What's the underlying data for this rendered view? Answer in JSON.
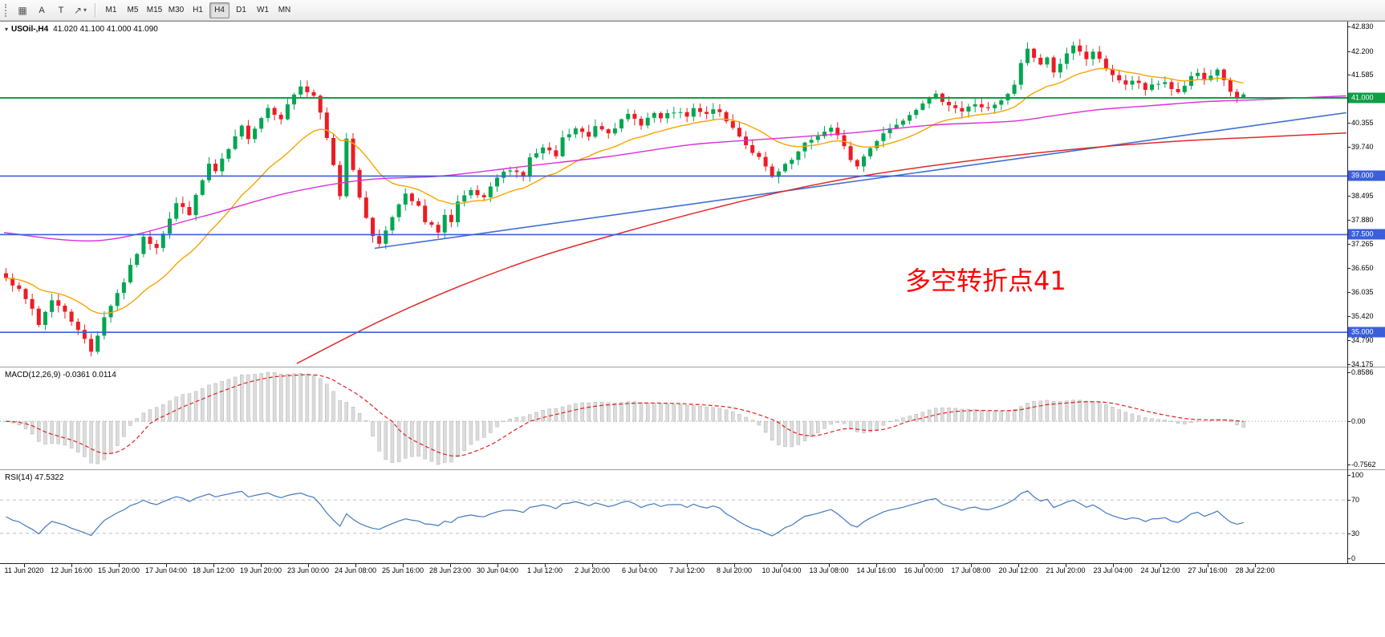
{
  "toolbar": {
    "grid_glyph": "▦",
    "text_tool_label": "A",
    "label_tool_label": "T",
    "arrow_glyph": "↗",
    "caret_glyph": "▾",
    "timeframes": [
      "M1",
      "M5",
      "M15",
      "M30",
      "H1",
      "H4",
      "D1",
      "W1",
      "MN"
    ],
    "active_timeframe": "H4"
  },
  "chart": {
    "collapse_glyph": "▾",
    "symbol_period": "USOil-,H4",
    "ohlc": "41.020 41.100 41.000 41.090",
    "annotation": {
      "text": "多空转折点41",
      "color": "#ff0000"
    },
    "price_axis_labels": [
      "42.830",
      "42.200",
      "41.585",
      "40.355",
      "39.740",
      "38.495",
      "37.880",
      "37.265",
      "36.650",
      "36.035",
      "35.420",
      "34.790",
      "34.175"
    ],
    "price_tags": [
      {
        "value": "41.000",
        "price": 41.0,
        "bg": "#0f9d46"
      },
      {
        "value": "39.000",
        "price": 39.0,
        "bg": "#3a5fd9"
      },
      {
        "value": "37.500",
        "price": 37.5,
        "bg": "#3a5fd9"
      },
      {
        "value": "35.000",
        "price": 35.0,
        "bg": "#3a5fd9"
      }
    ]
  },
  "macd": {
    "label": "MACD(12,26,9) -0.0361 0.0114",
    "axis_labels": [
      "0.8586",
      "0.00",
      "-0.7562"
    ],
    "histogram_color": "#dcdcdc",
    "histogram_border": "#a6a6a6",
    "signal_color": "#e02020"
  },
  "rsi": {
    "label": "RSI(14) 47.5322",
    "axis_labels": [
      "100",
      "70",
      "30",
      "0"
    ],
    "line_color": "#4178be",
    "level_color": "#bdbdbd",
    "levels": [
      70,
      30
    ]
  },
  "time_axis": [
    "11 Jun 2020",
    "12 Jun 16:00",
    "15 Jun 20:00",
    "17 Jun 04:00",
    "18 Jun 12:00",
    "19 Jun 20:00",
    "23 Jun 00:00",
    "24 Jun 08:00",
    "25 Jun 16:00",
    "28 Jun 23:00",
    "30 Jun 04:00",
    "1 Jul 12:00",
    "2 Jul 20:00",
    "6 Jul 04:00",
    "7 Jul 12:00",
    "8 Jul 20:00",
    "10 Jul 04:00",
    "13 Jul 08:00",
    "14 Jul 16:00",
    "16 Jul 00:00",
    "17 Jul 08:00",
    "20 Jul 12:00",
    "21 Jul 20:00",
    "23 Jul 04:00",
    "24 Jul 12:00",
    "27 Jul 16:00",
    "28 Jul 22:00"
  ],
  "chart_data": {
    "type": "candlestick",
    "symbol": "USOil-",
    "timeframe": "H4",
    "n_candles": 190,
    "ylim": [
      34.175,
      42.83
    ],
    "bull_color": "#00a651",
    "bear_color": "#ed1c24",
    "price_path": [
      [
        0,
        36.45
      ],
      [
        2,
        36.05
      ],
      [
        4,
        35.6
      ],
      [
        5,
        35.2
      ],
      [
        7,
        35.85
      ],
      [
        9,
        35.5
      ],
      [
        11,
        35.1
      ],
      [
        13,
        34.5
      ],
      [
        15,
        35.4
      ],
      [
        17,
        36.0
      ],
      [
        18,
        36.3
      ],
      [
        21,
        37.4
      ],
      [
        23,
        37.2
      ],
      [
        26,
        38.3
      ],
      [
        28,
        38.05
      ],
      [
        31,
        39.3
      ],
      [
        32,
        39.1
      ],
      [
        36,
        40.25
      ],
      [
        37,
        40.0
      ],
      [
        40,
        40.75
      ],
      [
        42,
        40.5
      ],
      [
        44,
        41.1
      ],
      [
        45,
        41.3
      ],
      [
        47,
        41.0
      ],
      [
        48,
        40.6
      ],
      [
        50,
        39.3
      ],
      [
        51,
        38.5
      ],
      [
        52,
        40.0
      ],
      [
        53,
        39.2
      ],
      [
        54,
        38.4
      ],
      [
        56,
        37.5
      ],
      [
        57,
        37.25
      ],
      [
        59,
        38.0
      ],
      [
        61,
        38.5
      ],
      [
        63,
        38.2
      ],
      [
        64,
        37.8
      ],
      [
        66,
        37.6
      ],
      [
        67,
        38.0
      ],
      [
        68,
        37.8
      ],
      [
        69,
        38.3
      ],
      [
        71,
        38.6
      ],
      [
        73,
        38.4
      ],
      [
        75,
        38.95
      ],
      [
        77,
        39.2
      ],
      [
        79,
        39.0
      ],
      [
        80,
        39.45
      ],
      [
        82,
        39.7
      ],
      [
        84,
        39.5
      ],
      [
        85,
        39.95
      ],
      [
        87,
        40.2
      ],
      [
        89,
        40.0
      ],
      [
        90,
        40.3
      ],
      [
        92,
        40.15
      ],
      [
        94,
        40.4
      ],
      [
        95,
        40.55
      ],
      [
        97,
        40.35
      ],
      [
        99,
        40.6
      ],
      [
        100,
        40.45
      ],
      [
        102,
        40.65
      ],
      [
        104,
        40.5
      ],
      [
        105,
        40.7
      ],
      [
        107,
        40.55
      ],
      [
        108,
        40.75
      ],
      [
        110,
        40.4
      ],
      [
        112,
        40.05
      ],
      [
        113,
        39.8
      ],
      [
        115,
        39.45
      ],
      [
        117,
        38.95
      ],
      [
        120,
        39.4
      ],
      [
        122,
        39.8
      ],
      [
        124,
        40.05
      ],
      [
        126,
        40.2
      ],
      [
        128,
        39.8
      ],
      [
        129,
        39.4
      ],
      [
        130,
        39.25
      ],
      [
        132,
        39.75
      ],
      [
        134,
        40.1
      ],
      [
        136,
        40.35
      ],
      [
        138,
        40.6
      ],
      [
        140,
        40.9
      ],
      [
        142,
        41.05
      ],
      [
        144,
        40.85
      ],
      [
        146,
        40.65
      ],
      [
        148,
        40.85
      ],
      [
        150,
        40.7
      ],
      [
        152,
        40.9
      ],
      [
        154,
        41.3
      ],
      [
        155,
        41.9
      ],
      [
        156,
        42.25
      ],
      [
        157,
        42.05
      ],
      [
        158,
        41.85
      ],
      [
        159,
        42.0
      ],
      [
        160,
        41.7
      ],
      [
        162,
        42.1
      ],
      [
        163,
        42.3
      ],
      [
        164,
        42.15
      ],
      [
        165,
        42.0
      ],
      [
        166,
        42.2
      ],
      [
        167,
        41.95
      ],
      [
        169,
        41.6
      ],
      [
        171,
        41.3
      ],
      [
        172,
        41.45
      ],
      [
        174,
        41.2
      ],
      [
        175,
        41.35
      ],
      [
        177,
        41.4
      ],
      [
        179,
        41.1
      ],
      [
        181,
        41.5
      ],
      [
        182,
        41.6
      ],
      [
        183,
        41.45
      ],
      [
        185,
        41.7
      ],
      [
        186,
        41.4
      ],
      [
        187,
        41.15
      ],
      [
        188,
        41.0
      ],
      [
        189,
        41.09
      ]
    ],
    "hlines": [
      {
        "price": 41.0,
        "color": "#0f9d46",
        "width": 2
      },
      {
        "price": 39.0,
        "color": "#3a5fd9",
        "width": 1.6
      },
      {
        "price": 37.5,
        "color": "#3a5fd9",
        "width": 1.6
      },
      {
        "price": 35.0,
        "color": "#3a5fd9",
        "width": 1.6
      }
    ],
    "overlays": [
      {
        "name": "ma-fast",
        "type": "ema",
        "period": 18,
        "color": "#f7a400",
        "width": 1.4
      },
      {
        "name": "ma-medium",
        "color": "#d92ed9",
        "width": 1.4,
        "points": [
          [
            0,
            37.55
          ],
          [
            14.7,
            37.35
          ],
          [
            30,
            37.95
          ],
          [
            42.9,
            38.55
          ],
          [
            55.1,
            38.9
          ],
          [
            66.8,
            39.0
          ],
          [
            79.7,
            39.25
          ],
          [
            92.5,
            39.5
          ],
          [
            104.8,
            39.8
          ],
          [
            117,
            39.95
          ],
          [
            129.3,
            40.1
          ],
          [
            141.5,
            40.3
          ],
          [
            153.8,
            40.4
          ],
          [
            160.5,
            40.55
          ],
          [
            167.3,
            40.7
          ],
          [
            175.2,
            40.8
          ],
          [
            183.2,
            40.9
          ],
          [
            191.2,
            40.95
          ],
          [
            205,
            41.05
          ]
        ]
      },
      {
        "name": "trendline",
        "color": "#3f6fd1",
        "width": 1.6,
        "points": [
          [
            56.6,
            37.15
          ],
          [
            205,
            40.62
          ]
        ]
      },
      {
        "name": "ma-slow",
        "color": "#e02828",
        "width": 1.5,
        "points": [
          [
            44.7,
            34.2
          ],
          [
            57.6,
            35.3
          ],
          [
            69.9,
            36.2
          ],
          [
            82.1,
            36.95
          ],
          [
            94.4,
            37.55
          ],
          [
            106.6,
            38.1
          ],
          [
            118.9,
            38.6
          ],
          [
            131.1,
            39.0
          ],
          [
            143.4,
            39.3
          ],
          [
            155.6,
            39.55
          ],
          [
            167.9,
            39.75
          ],
          [
            180.1,
            39.9
          ],
          [
            192.4,
            40.0
          ],
          [
            205,
            40.1
          ]
        ]
      }
    ]
  }
}
